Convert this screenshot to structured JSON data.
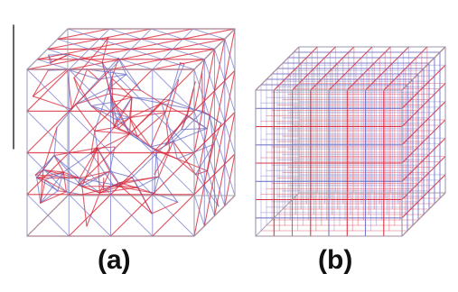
{
  "panels": [
    {
      "id": "a",
      "caption": "(a)",
      "structure": "random-triangulated-lattice-cube"
    },
    {
      "id": "b",
      "caption": "(b)",
      "structure": "regular-cubic-grid-lattice-cube"
    }
  ],
  "colors": {
    "strut_red": "#d8283a",
    "strut_blue": "#6f74c8",
    "edge_grey": "#9a9aa8",
    "scale_bar": "#222222"
  }
}
